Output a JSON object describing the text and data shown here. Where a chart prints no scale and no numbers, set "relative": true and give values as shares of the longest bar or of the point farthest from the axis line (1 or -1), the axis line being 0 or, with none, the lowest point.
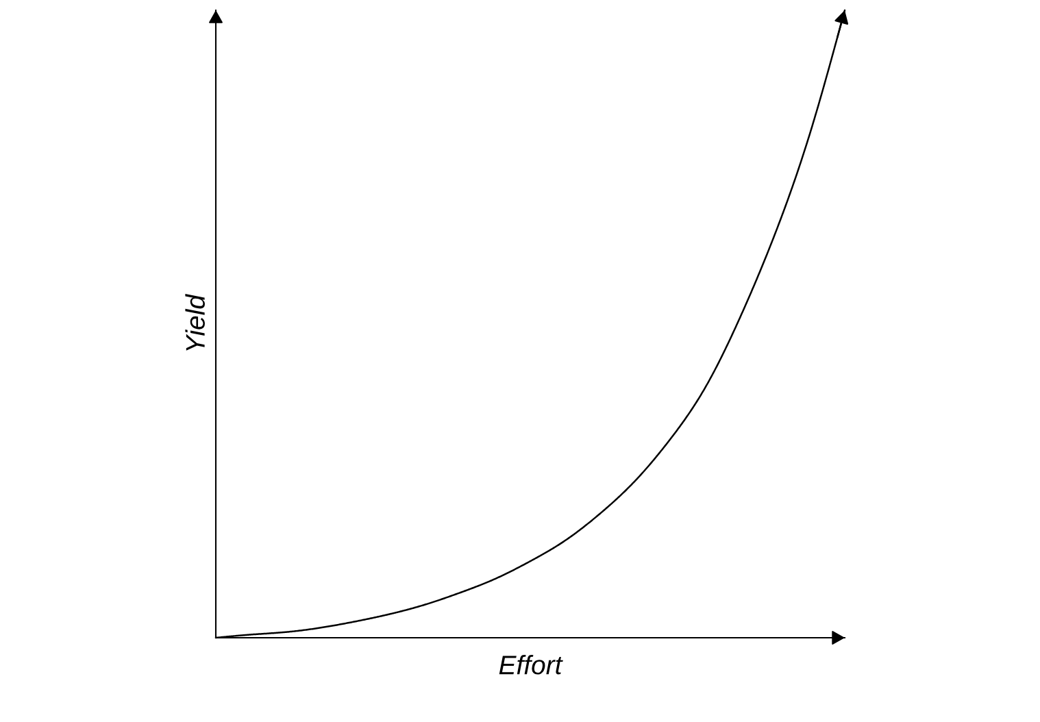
{
  "chart_data": {
    "type": "line",
    "relative": true,
    "xlabel": "Effort",
    "ylabel": "Yield",
    "tick_labels": false,
    "categories": [
      null,
      null,
      null,
      null,
      null,
      null,
      null,
      null,
      null,
      null,
      null,
      null,
      null,
      null,
      null,
      null,
      null,
      null,
      null
    ],
    "series": [
      {
        "color": "#000000",
        "values": [
          0,
          0.005,
          0.009,
          0.016,
          0.026,
          0.038,
          0.053,
          0.072,
          0.094,
          0.122,
          0.155,
          0.198,
          0.25,
          0.316,
          0.398,
          0.51,
          0.643,
          0.803,
          1.0
        ]
      }
    ]
  }
}
